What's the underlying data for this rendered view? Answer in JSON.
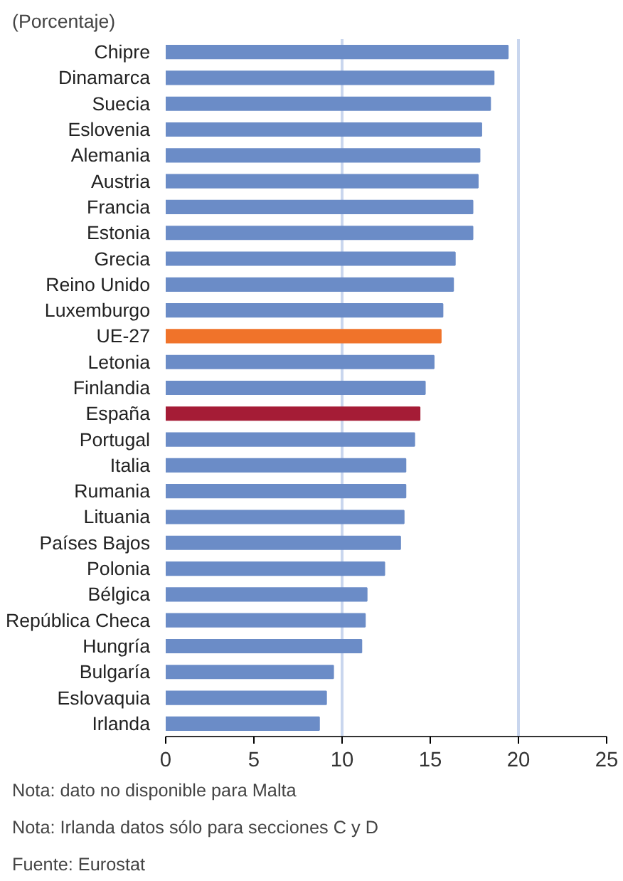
{
  "chart_data": {
    "type": "bar",
    "orientation": "horizontal",
    "title": "(Porcentaje)",
    "categories": [
      "Chipre",
      "Dinamarca",
      "Suecia",
      "Eslovenia",
      "Alemania",
      "Austria",
      "Francia",
      "Estonia",
      "Grecia",
      "Reino Unido",
      "Luxemburgo",
      "UE-27",
      "Letonia",
      "Finlandia",
      "España",
      "Portugal",
      "Italia",
      "Rumania",
      "Lituania",
      "Países Bajos",
      "Polonia",
      "Bélgica",
      "República Checa",
      "Hungría",
      "Bulgaría",
      "Eslovaquia",
      "Irlanda"
    ],
    "values": [
      19.4,
      18.6,
      18.4,
      17.9,
      17.8,
      17.7,
      17.4,
      17.4,
      16.4,
      16.3,
      15.7,
      15.6,
      15.2,
      14.7,
      14.4,
      14.1,
      13.6,
      13.6,
      13.5,
      13.3,
      12.4,
      11.4,
      11.3,
      11.1,
      9.5,
      9.1,
      8.7
    ],
    "color": "#6b8cc7",
    "colors": [
      null,
      null,
      null,
      null,
      null,
      null,
      null,
      null,
      null,
      null,
      null,
      "#f0732a",
      null,
      null,
      "#a51c36",
      null,
      null,
      null,
      null,
      null,
      null,
      null,
      null,
      null,
      null,
      null,
      null
    ],
    "xlim": [
      0,
      25
    ],
    "xticks": [
      0,
      5,
      10,
      15,
      20,
      25
    ],
    "ref_lines": [
      {
        "axis": "x",
        "value": 10,
        "color": "#c9d6ee"
      },
      {
        "axis": "x",
        "value": 20,
        "color": "#c9d6ee"
      }
    ],
    "annotations": [
      "Nota: dato no disponible para Malta",
      "Nota: Irlanda datos sólo para secciones C y D",
      "Fuente: Eurostat"
    ]
  }
}
